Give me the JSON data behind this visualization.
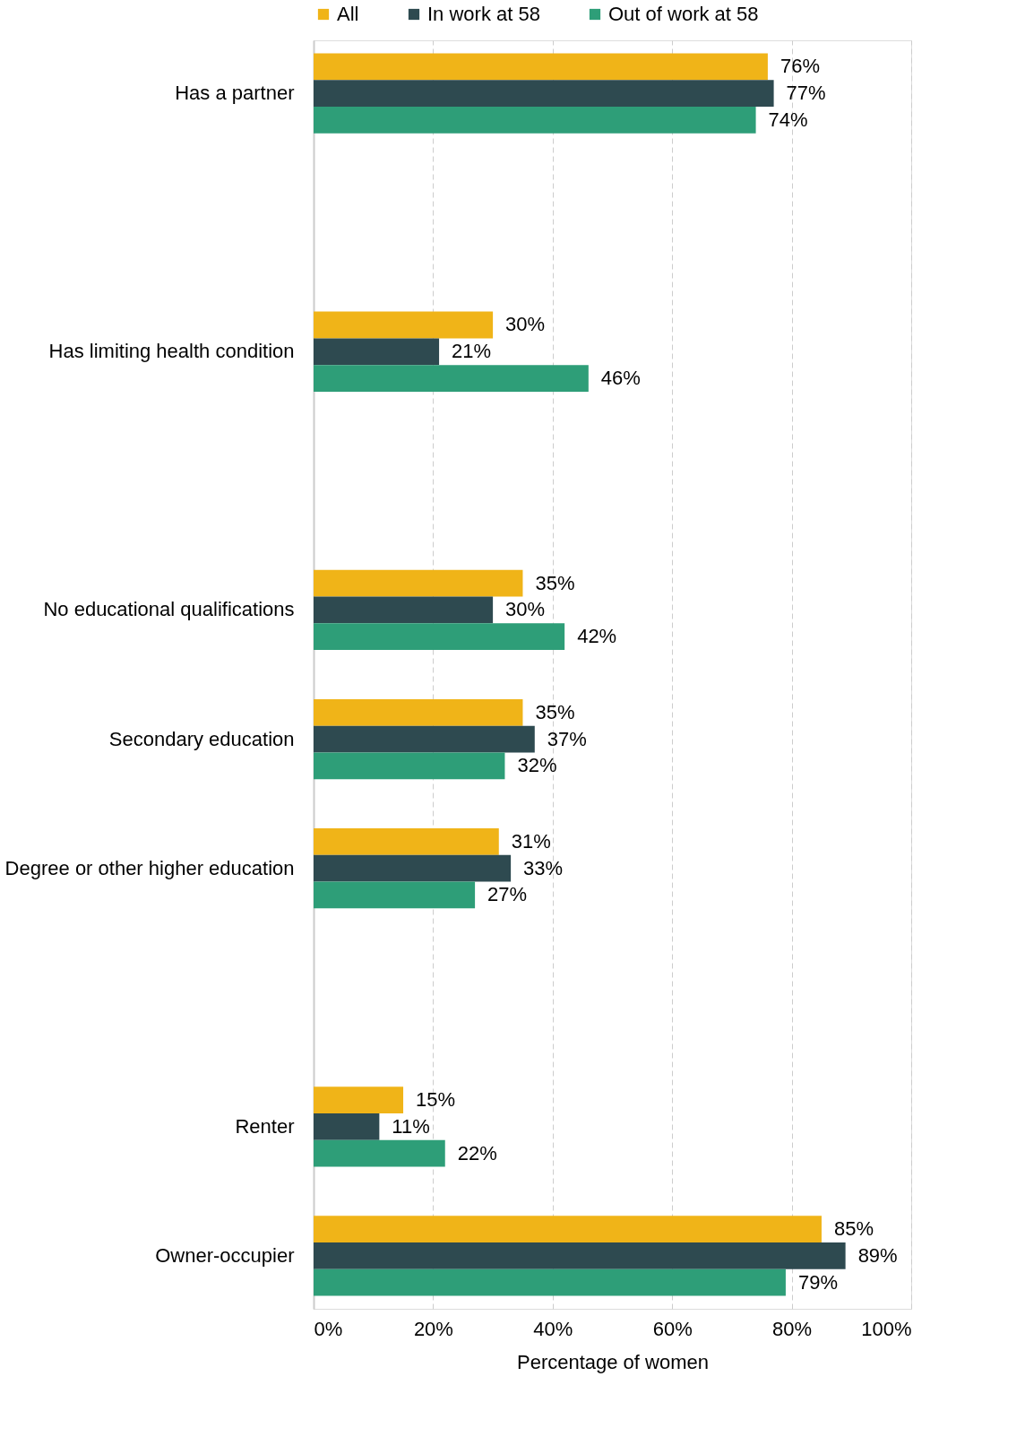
{
  "chart_data": {
    "type": "bar",
    "orientation": "horizontal",
    "xlabel": "Percentage of women",
    "categories": [
      "Has a partner",
      null,
      "Has limiting health condition",
      null,
      "No educational qualifications",
      "Secondary education",
      "Degree or other higher education",
      null,
      "Renter",
      "Owner-occupier"
    ],
    "series": [
      {
        "name": "All",
        "color": "#f0b418",
        "values": [
          76,
          null,
          30,
          null,
          35,
          35,
          31,
          null,
          15,
          85
        ],
        "value_labels": [
          "76%",
          null,
          "30%",
          null,
          "35%",
          "35%",
          "31%",
          null,
          "15%",
          "85%"
        ]
      },
      {
        "name": "In work at 58",
        "color": "#2e4a50",
        "values": [
          77,
          null,
          21,
          null,
          30,
          37,
          33,
          null,
          11,
          89
        ],
        "value_labels": [
          "77%",
          null,
          "21%",
          null,
          "30%",
          "37%",
          "33%",
          null,
          "11%",
          "89%"
        ]
      },
      {
        "name": "Out of work at 58",
        "color": "#2e9e78",
        "values": [
          74,
          null,
          46,
          null,
          42,
          32,
          27,
          null,
          22,
          79
        ],
        "value_labels": [
          "74%",
          null,
          "46%",
          null,
          "42%",
          "32%",
          "27%",
          null,
          "22%",
          "79%"
        ]
      }
    ],
    "xlim": [
      0,
      100
    ],
    "xticks": [
      {
        "value": 0,
        "label": "0%"
      },
      {
        "value": 20,
        "label": "20%"
      },
      {
        "value": 40,
        "label": "40%"
      },
      {
        "value": 60,
        "label": "60%"
      },
      {
        "value": 80,
        "label": "80%"
      },
      {
        "value": 100,
        "label": "100%"
      }
    ],
    "grid": "x",
    "legend": "top"
  }
}
